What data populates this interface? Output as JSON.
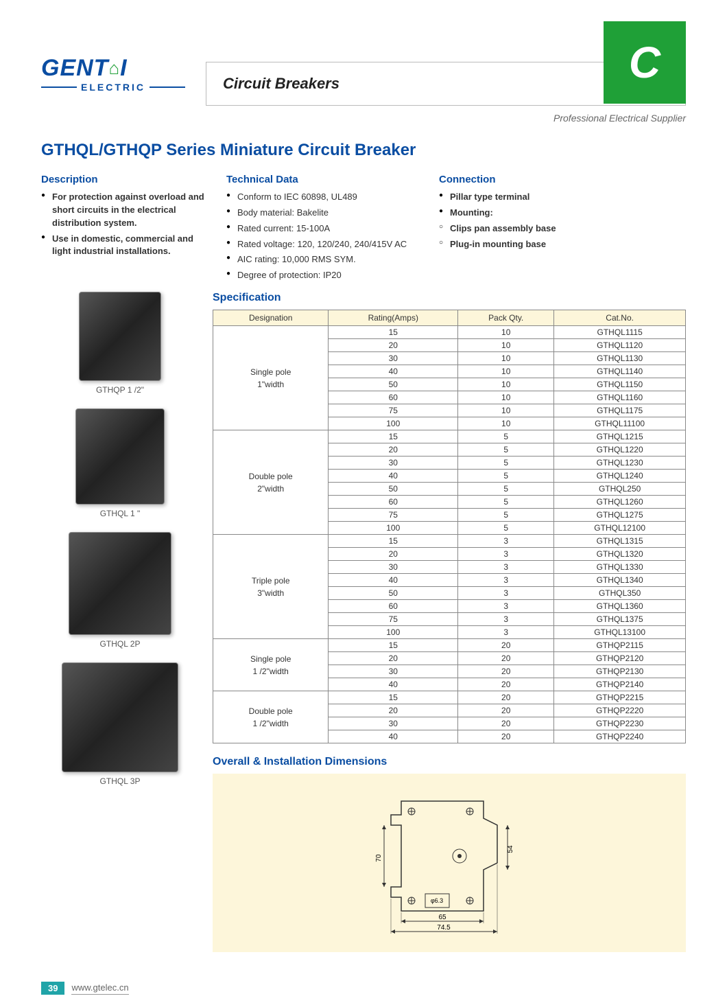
{
  "header": {
    "brand_main": "GENT",
    "brand_a": "A",
    "brand_i": "I",
    "brand_sub": "ELECTRIC",
    "title": "Circuit Breakers",
    "tab": "C",
    "subtitle": "Professional Electrical Supplier"
  },
  "series_title": "GTHQL/GTHQP Series Miniature Circuit Breaker",
  "description": {
    "heading": "Description",
    "items": [
      {
        "text": "For protection against overload and short circuits in the electrical distribution system.",
        "bold": true
      },
      {
        "text": "Use in domestic, commercial and light industrial installations.",
        "bold": true
      }
    ]
  },
  "technical": {
    "heading": "Technical Data",
    "items": [
      {
        "text": "Conform to IEC 60898, UL489"
      },
      {
        "text": "Body material: Bakelite"
      },
      {
        "text": "Rated current: 15-100A"
      },
      {
        "text": "Rated voltage: 120, 120/240, 240/415V AC"
      },
      {
        "text": "AIC rating: 10,000 RMS SYM."
      },
      {
        "text": "Degree of protection: IP20"
      }
    ]
  },
  "connection": {
    "heading": "Connection",
    "items": [
      {
        "text": "Pillar type terminal",
        "bold": true
      },
      {
        "text": "Mounting:",
        "bold": true
      },
      {
        "text": "Clips pan assembly base",
        "bold": true,
        "hollow": true
      },
      {
        "text": "Plug-in mounting base",
        "bold": true,
        "hollow": true
      }
    ]
  },
  "products": [
    {
      "caption": "GTHQP  1 /2\"",
      "size": ""
    },
    {
      "caption": "GTHQL  1 \"",
      "size": "med"
    },
    {
      "caption": "GTHQL  2P",
      "size": "wide"
    },
    {
      "caption": "GTHQL  3P",
      "size": "xwide"
    }
  ],
  "spec": {
    "heading": "Specification",
    "columns": [
      "Designation",
      "Rating(Amps)",
      "Pack Qty.",
      "Cat.No."
    ],
    "groups": [
      {
        "designation": "Single pole\n1\"width",
        "rows": [
          [
            "15",
            "10",
            "GTHQL1115"
          ],
          [
            "20",
            "10",
            "GTHQL1120"
          ],
          [
            "30",
            "10",
            "GTHQL1130"
          ],
          [
            "40",
            "10",
            "GTHQL1140"
          ],
          [
            "50",
            "10",
            "GTHQL1150"
          ],
          [
            "60",
            "10",
            "GTHQL1160"
          ],
          [
            "75",
            "10",
            "GTHQL1175"
          ],
          [
            "100",
            "10",
            "GTHQL11100"
          ]
        ]
      },
      {
        "designation": "Double pole\n2\"width",
        "rows": [
          [
            "15",
            "5",
            "GTHQL1215"
          ],
          [
            "20",
            "5",
            "GTHQL1220"
          ],
          [
            "30",
            "5",
            "GTHQL1230"
          ],
          [
            "40",
            "5",
            "GTHQL1240"
          ],
          [
            "50",
            "5",
            "GTHQL250"
          ],
          [
            "60",
            "5",
            "GTHQL1260"
          ],
          [
            "75",
            "5",
            "GTHQL1275"
          ],
          [
            "100",
            "5",
            "GTHQL12100"
          ]
        ]
      },
      {
        "designation": "Triple pole\n3\"width",
        "rows": [
          [
            "15",
            "3",
            "GTHQL1315"
          ],
          [
            "20",
            "3",
            "GTHQL1320"
          ],
          [
            "30",
            "3",
            "GTHQL1330"
          ],
          [
            "40",
            "3",
            "GTHQL1340"
          ],
          [
            "50",
            "3",
            "GTHQL350"
          ],
          [
            "60",
            "3",
            "GTHQL1360"
          ],
          [
            "75",
            "3",
            "GTHQL1375"
          ],
          [
            "100",
            "3",
            "GTHQL13100"
          ]
        ]
      },
      {
        "designation": "Single pole\n1 /2\"width",
        "rows": [
          [
            "15",
            "20",
            "GTHQP2115"
          ],
          [
            "20",
            "20",
            "GTHQP2120"
          ],
          [
            "30",
            "20",
            "GTHQP2130"
          ],
          [
            "40",
            "20",
            "GTHQP2140"
          ]
        ]
      },
      {
        "designation": "Double pole\n1 /2\"width",
        "rows": [
          [
            "15",
            "20",
            "GTHQP2215"
          ],
          [
            "20",
            "20",
            "GTHQP2220"
          ],
          [
            "30",
            "20",
            "GTHQP2230"
          ],
          [
            "40",
            "20",
            "GTHQP2240"
          ]
        ]
      }
    ]
  },
  "dims": {
    "heading": "Overall & Installation Dimensions",
    "h1": "70",
    "h2": "54",
    "w1": "65",
    "w2": "74.5",
    "plug": "φ6.3"
  },
  "footer": {
    "page": "39",
    "url": "www.gtelec.cn"
  }
}
